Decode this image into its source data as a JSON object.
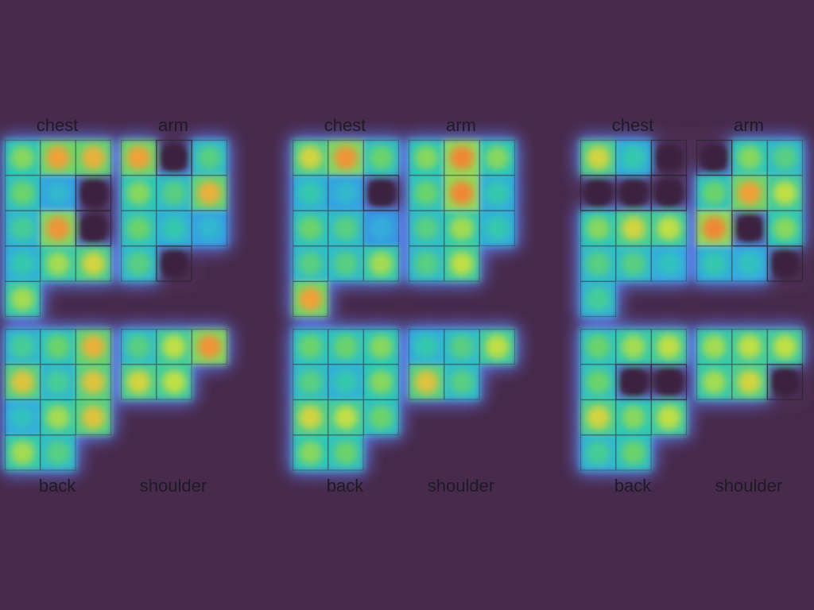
{
  "colors": {
    "background": "#472a4c",
    "cell_grid": "#2b2630",
    "colormap": [
      "#3e63d8",
      "#35a7e4",
      "#2fc7b5",
      "#6ad36a",
      "#c9e040",
      "#f0a53a",
      "#f07a32"
    ]
  },
  "chart_data": {
    "type": "heatmap",
    "value_range": [
      0,
      1
    ],
    "panels": [
      {
        "labels": {
          "chest": "chest",
          "arm": "arm",
          "back": "back",
          "shoulder": "shoulder"
        },
        "chest": [
          [
            0.55,
            0.85,
            0.8
          ],
          [
            0.5,
            0.25,
            null
          ],
          [
            0.4,
            0.9,
            null
          ],
          [
            0.35,
            0.6,
            0.7
          ],
          [
            0.6
          ]
        ],
        "arm": [
          [
            0.85,
            null,
            0.45
          ],
          [
            0.55,
            0.45,
            0.8
          ],
          [
            0.5,
            0.35,
            0.25
          ],
          [
            0.45,
            null
          ]
        ],
        "back": [
          [
            0.4,
            0.5,
            0.8
          ],
          [
            0.75,
            0.4,
            0.75
          ],
          [
            0.3,
            0.6,
            0.75
          ],
          [
            0.6,
            0.45
          ]
        ],
        "shoulder": [
          [
            0.45,
            0.65,
            0.9
          ],
          [
            0.7,
            0.65
          ]
        ]
      },
      {
        "labels": {
          "chest": "chest",
          "arm": "arm",
          "back": "back",
          "shoulder": "shoulder"
        },
        "chest": [
          [
            0.7,
            0.9,
            0.5
          ],
          [
            0.35,
            0.25,
            null
          ],
          [
            0.5,
            0.45,
            0.2
          ],
          [
            0.45,
            0.45,
            0.6
          ],
          [
            0.85
          ]
        ],
        "arm": [
          [
            0.55,
            0.95,
            0.55
          ],
          [
            0.5,
            0.95,
            0.35
          ],
          [
            0.45,
            0.6,
            0.35
          ],
          [
            0.45,
            0.65
          ]
        ],
        "back": [
          [
            0.5,
            0.5,
            0.55
          ],
          [
            0.45,
            0.35,
            0.55
          ],
          [
            0.7,
            0.65,
            0.5
          ],
          [
            0.55,
            0.5
          ]
        ],
        "shoulder": [
          [
            0.35,
            0.45,
            0.65
          ],
          [
            0.75,
            0.45
          ]
        ]
      },
      {
        "labels": {
          "chest": "chest",
          "arm": "arm",
          "back": "back",
          "shoulder": "shoulder"
        },
        "chest": [
          [
            0.7,
            0.35,
            null
          ],
          [
            null,
            null,
            null
          ],
          [
            0.55,
            0.7,
            0.65
          ],
          [
            0.45,
            0.45,
            0.3
          ],
          [
            0.4
          ]
        ],
        "arm": [
          [
            null,
            0.55,
            0.45
          ],
          [
            0.5,
            0.85,
            0.65
          ],
          [
            0.95,
            null,
            0.55
          ],
          [
            0.35,
            0.3,
            null
          ]
        ],
        "back": [
          [
            0.5,
            0.6,
            0.65
          ],
          [
            0.5,
            null,
            null
          ],
          [
            0.7,
            0.55,
            0.65
          ],
          [
            0.4,
            0.5
          ]
        ],
        "shoulder": [
          [
            0.6,
            0.65,
            0.65
          ],
          [
            0.6,
            0.7,
            null
          ]
        ]
      }
    ]
  }
}
